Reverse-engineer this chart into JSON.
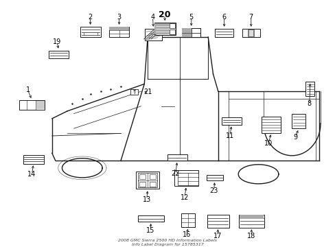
{
  "bg_color": "#ffffff",
  "lc": "#1a1a1a",
  "title1": "2008 GMC Sierra 2500 HD Information Labels",
  "title2": "Info Label Diagram for 15785317",
  "labels": {
    "1": {
      "ix": 0.095,
      "iy": 0.575,
      "iw": 0.075,
      "ih": 0.04,
      "style": "grid3col",
      "nx": 0.083,
      "ny": 0.635
    },
    "2": {
      "ix": 0.27,
      "iy": 0.87,
      "iw": 0.06,
      "ih": 0.042,
      "style": "hlines4",
      "nx": 0.268,
      "ny": 0.93
    },
    "3": {
      "ix": 0.355,
      "iy": 0.87,
      "iw": 0.058,
      "ih": 0.042,
      "style": "grid2x3gray",
      "nx": 0.355,
      "ny": 0.93
    },
    "4": {
      "ix": 0.457,
      "iy": 0.86,
      "iw": 0.05,
      "ih": 0.046,
      "style": "diaglines",
      "nx": 0.455,
      "ny": 0.93
    },
    "5": {
      "ix": 0.57,
      "iy": 0.868,
      "iw": 0.056,
      "ih": 0.036,
      "style": "grid2x2gray",
      "nx": 0.57,
      "ny": 0.93
    },
    "6": {
      "ix": 0.668,
      "iy": 0.866,
      "iw": 0.054,
      "ih": 0.034,
      "style": "hlines3",
      "nx": 0.668,
      "ny": 0.93
    },
    "7": {
      "ix": 0.748,
      "iy": 0.866,
      "iw": 0.054,
      "ih": 0.034,
      "style": "grid3boxes",
      "nx": 0.748,
      "ny": 0.93
    },
    "8": {
      "ix": 0.924,
      "iy": 0.64,
      "iw": 0.026,
      "ih": 0.058,
      "style": "vlines_tall",
      "nx": 0.922,
      "ny": 0.58
    },
    "9": {
      "ix": 0.89,
      "iy": 0.51,
      "iw": 0.04,
      "ih": 0.06,
      "style": "vlines_tall2",
      "nx": 0.88,
      "ny": 0.445
    },
    "10": {
      "ix": 0.808,
      "iy": 0.495,
      "iw": 0.058,
      "ih": 0.065,
      "style": "hlines5tall",
      "nx": 0.8,
      "ny": 0.42
    },
    "11": {
      "ix": 0.69,
      "iy": 0.51,
      "iw": 0.058,
      "ih": 0.03,
      "style": "hlines3",
      "nx": 0.685,
      "ny": 0.45
    },
    "12": {
      "ix": 0.555,
      "iy": 0.28,
      "iw": 0.07,
      "ih": 0.065,
      "style": "complex_grid",
      "nx": 0.55,
      "ny": 0.2
    },
    "13": {
      "ix": 0.44,
      "iy": 0.27,
      "iw": 0.07,
      "ih": 0.07,
      "style": "complex_grid2",
      "nx": 0.437,
      "ny": 0.193
    },
    "14": {
      "ix": 0.1,
      "iy": 0.355,
      "iw": 0.062,
      "ih": 0.035,
      "style": "hlines4",
      "nx": 0.095,
      "ny": 0.295
    },
    "15": {
      "ix": 0.45,
      "iy": 0.115,
      "iw": 0.078,
      "ih": 0.026,
      "style": "hlines2",
      "nx": 0.448,
      "ny": 0.068
    },
    "16": {
      "ix": 0.56,
      "iy": 0.108,
      "iw": 0.042,
      "ih": 0.055,
      "style": "grid2x3small",
      "nx": 0.557,
      "ny": 0.05
    },
    "17": {
      "ix": 0.65,
      "iy": 0.105,
      "iw": 0.065,
      "ih": 0.052,
      "style": "hlines4med",
      "nx": 0.648,
      "ny": 0.045
    },
    "18": {
      "ix": 0.75,
      "iy": 0.105,
      "iw": 0.075,
      "ih": 0.052,
      "style": "hlines4med2",
      "nx": 0.748,
      "ny": 0.045
    },
    "19": {
      "ix": 0.175,
      "iy": 0.78,
      "iw": 0.058,
      "ih": 0.03,
      "style": "hlines3thin",
      "nx": 0.17,
      "ny": 0.83
    },
    "20": {
      "ix": 0.492,
      "iy": 0.883,
      "iw": 0.062,
      "ih": 0.048,
      "style": "complex20",
      "nx": 0.49,
      "ny": 0.94
    },
    "21": {
      "ix": 0.4,
      "iy": 0.628,
      "iw": 0.024,
      "ih": 0.02,
      "style": "symbol21",
      "nx": 0.44,
      "ny": 0.628
    },
    "22": {
      "ix": 0.528,
      "iy": 0.362,
      "iw": 0.06,
      "ih": 0.026,
      "style": "hlines2",
      "nx": 0.523,
      "ny": 0.298
    },
    "23": {
      "ix": 0.64,
      "iy": 0.28,
      "iw": 0.05,
      "ih": 0.022,
      "style": "hlines2thin",
      "nx": 0.637,
      "ny": 0.228
    }
  },
  "truck": {
    "body_color": "#ffffff",
    "line_width": 1.0
  }
}
